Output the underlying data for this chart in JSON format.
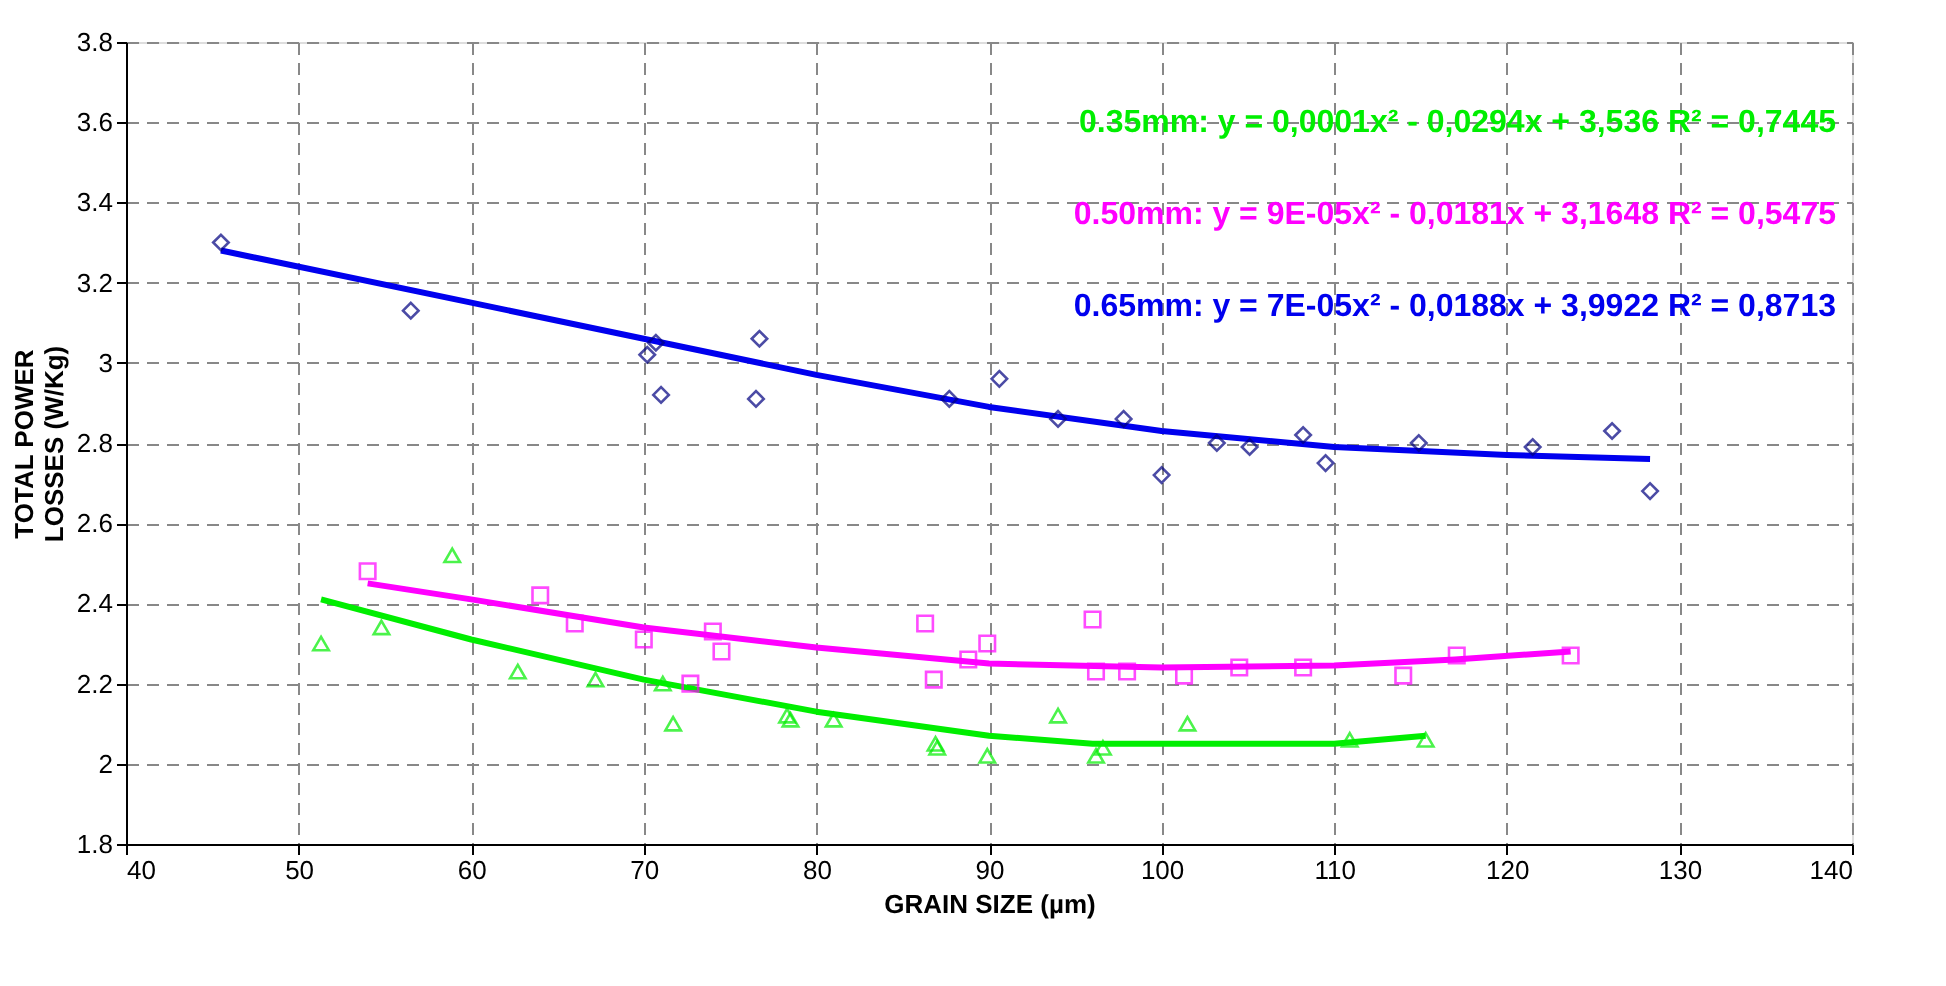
{
  "chart_data": {
    "type": "scatter",
    "xlabel": "GRAIN SIZE (µm)",
    "ylabel": "TOTAL POWER\nLOSSES (W/Kg)",
    "xlim": [
      40,
      140
    ],
    "xticks": [
      40,
      50,
      60,
      70,
      80,
      90,
      100,
      110,
      120,
      130,
      140
    ],
    "ylim": [
      1.8,
      3.8
    ],
    "yticks": [
      1.8,
      2,
      2.2,
      2.4,
      2.6,
      2.8,
      3,
      3.2,
      3.4,
      3.6,
      3.8
    ],
    "grid": true,
    "legend": "top right",
    "series": [
      {
        "type": "line",
        "name": "0.35mm: y = 0,0001x² - 0,0294x + 3,536 R² = 0,7445",
        "color": "#00ee00",
        "marker": "none",
        "line_style": "solid",
        "x": [
          51.3,
          60,
          70,
          80,
          90,
          96,
          100,
          110,
          115.3
        ],
        "values": [
          2.41,
          2.31,
          2.21,
          2.13,
          2.07,
          2.05,
          2.05,
          2.05,
          2.07
        ]
      },
      {
        "type": "line",
        "name": "0.50mm: y = 9E-05x² - 0,0181x + 3,1648 R² = 0,5475",
        "color": "#ff00ff",
        "marker": "none",
        "line_style": "solid",
        "x": [
          54,
          60,
          70,
          80,
          90,
          100,
          110,
          117,
          123.7
        ],
        "values": [
          2.45,
          2.41,
          2.34,
          2.29,
          2.25,
          2.24,
          2.245,
          2.26,
          2.28
        ]
      },
      {
        "type": "line",
        "name": "0.65mm: y = 7E-05x² - 0,0188x + 3,9922 R² = 0,8713",
        "color": "#0000ee",
        "marker": "none",
        "line_style": "solid",
        "x": [
          45.5,
          60,
          70,
          80,
          90,
          100,
          110,
          120,
          128.3
        ],
        "values": [
          3.28,
          3.15,
          3.06,
          2.97,
          2.89,
          2.83,
          2.79,
          2.77,
          2.76
        ]
      },
      {
        "color": "#000080",
        "marker": "diamond",
        "x": [
          45.5,
          56.5,
          70.2,
          70.7,
          71,
          76.5,
          76.7,
          87.7,
          90.6,
          94,
          97.8,
          100,
          103.2,
          105.1,
          108.2,
          109.5,
          114.9,
          121.5,
          126.1,
          128.3
        ],
        "values": [
          3.3,
          3.13,
          3.02,
          3.05,
          2.92,
          2.91,
          3.06,
          2.91,
          2.96,
          2.86,
          2.86,
          2.72,
          2.8,
          2.79,
          2.82,
          2.75,
          2.8,
          2.79,
          2.83,
          2.68
        ]
      },
      {
        "color": "#ff00ff",
        "marker": "square",
        "x": [
          54,
          64,
          66,
          70,
          72.7,
          74,
          74.5,
          86.3,
          86.8,
          88.8,
          89.9,
          96,
          96.2,
          98,
          101.3,
          104.5,
          108.2,
          114,
          117.1,
          123.7
        ],
        "values": [
          2.48,
          2.42,
          2.35,
          2.31,
          2.2,
          2.33,
          2.28,
          2.35,
          2.21,
          2.26,
          2.3,
          2.36,
          2.23,
          2.23,
          2.22,
          2.24,
          2.24,
          2.22,
          2.27,
          2.27
        ]
      },
      {
        "color": "#00ee00",
        "marker": "triangle",
        "x": [
          51.3,
          54.8,
          58.9,
          62.7,
          67.2,
          71.1,
          71.7,
          78.3,
          78.5,
          81,
          86.9,
          87,
          89.9,
          94,
          96.2,
          96.6,
          101.5,
          110.9,
          115.3
        ],
        "values": [
          2.3,
          2.34,
          2.52,
          2.23,
          2.21,
          2.2,
          2.1,
          2.12,
          2.11,
          2.11,
          2.05,
          2.04,
          2.02,
          2.12,
          2.02,
          2.04,
          2.1,
          2.06,
          2.06
        ]
      }
    ]
  }
}
